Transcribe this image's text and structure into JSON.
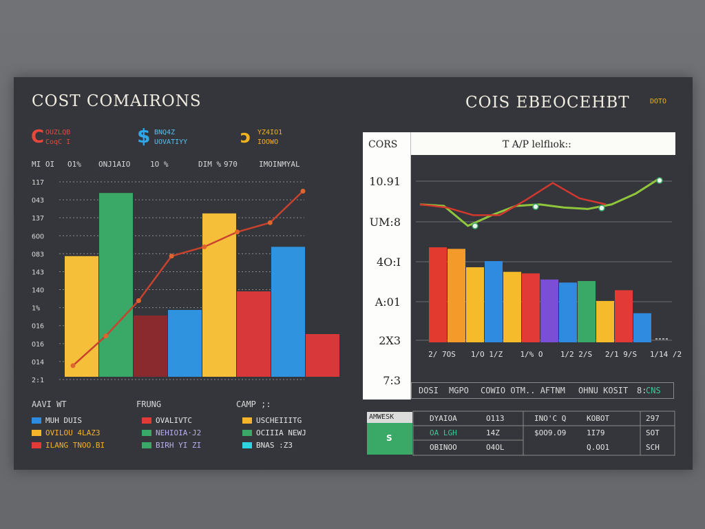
{
  "left_panel": {
    "title": "COST COMAIRONS",
    "kpis": [
      {
        "icon": "cost-icon",
        "color": "#e8473c",
        "line1": "OUZLQB",
        "line2": "CoqC I",
        "label_color": "#e8473c"
      },
      {
        "icon": "dollar-icon",
        "color": "#2fa8e8",
        "line1": "BNQ4Z",
        "line2": "UOVATIYY",
        "label_color": "#56c0f0"
      },
      {
        "icon": "gauge-icon",
        "color": "#f3b21e",
        "line1": "YZ4IO1",
        "line2": "IOOWO",
        "label_color": "#f3b21e"
      }
    ],
    "header_row": [
      "MI OI",
      "O1%",
      "ONJ1AIO",
      "1O %",
      "DIM %",
      "970",
      "IMOINMYAL"
    ],
    "legend_title_1": "AAVI WT",
    "legend_title_2": "FRUNG",
    "legend_title_3": "CAMP ;:",
    "legend": [
      {
        "color": "#2f8be0",
        "label": "MUH DUIS",
        "label_color": "#e6e6e6"
      },
      {
        "color": "#f5b52a",
        "label": "OVILOU 4LAZ3",
        "label_color": "#f5b52a"
      },
      {
        "color": "#e23a36",
        "label": "ILANG TNOO.BI",
        "label_color": "#f3b21e"
      },
      {
        "color": "#e23a36",
        "label": "OVALIVTC",
        "label_color": "#e6e6e6"
      },
      {
        "color": "#3aa866",
        "label": "NEHIOIA·J2",
        "label_color": "#b8b0f0"
      },
      {
        "color": "#3aa866",
        "label": "BIRH YI ZI",
        "label_color": "#b8b0f0"
      },
      {
        "color": "#f5b52a",
        "label": "USCHEIIITG",
        "label_color": "#e6e6e6"
      },
      {
        "color": "#3aa866",
        "label": "OCIIIA NEWJ",
        "label_color": "#e6e6e6"
      },
      {
        "color": "#2fd4e0",
        "label": "BNAS :Z3",
        "label_color": "#e6e6e6"
      }
    ]
  },
  "right_panel": {
    "title": "COIS EBEOCEHBT",
    "badge": "DOTO",
    "axis_label": "CORS",
    "header": "T A/P lelflıok::",
    "summary": {
      "c1": "DOSI",
      "c2": "MGPO",
      "c3": "COWIO OTM.. AFTNM",
      "c4": "OHNU KOSIT",
      "c5": "8:",
      "c6": "CNS"
    },
    "table": {
      "label": "AMWESK",
      "value": "S",
      "rows": [
        [
          "DYAIOA",
          "O113",
          "INO'C Q",
          "KOBOT",
          "297"
        ],
        [
          "OA LGH",
          "14Z",
          "$OO9.O9",
          "1I79",
          "SOT"
        ],
        [
          "OBINOO",
          "O4OL",
          "",
          "Q.OO1",
          "SCH"
        ]
      ]
    }
  },
  "chart_data": [
    {
      "type": "bar",
      "title": "COST COMAIRONS",
      "y_tick_labels": [
        "117",
        "O43",
        "137",
        "6OO",
        "O83",
        "143",
        "14O",
        "1%",
        "O16",
        "O16",
        "O14",
        "2:1"
      ],
      "bars": [
        {
          "color": "#f5bf3a",
          "value": 6.5
        },
        {
          "color": "#3aa866",
          "value": 9.9
        },
        {
          "color": "#8a2a2e",
          "value": 3.3
        },
        {
          "color": "#2f93e0",
          "value": 3.6
        },
        {
          "color": "#f5bf3a",
          "value": 8.8
        },
        {
          "color": "#d8383a",
          "value": 4.6
        },
        {
          "color": "#2f93e0",
          "value": 7.0
        },
        {
          "color": "#d8383a",
          "value": 2.3
        }
      ],
      "series": [
        {
          "type": "line",
          "color": "#c8422e",
          "values": [
            0.6,
            2.2,
            4.1,
            6.5,
            7.0,
            7.8,
            8.3,
            10.0
          ]
        }
      ],
      "ylim": [
        0,
        10.5
      ]
    },
    {
      "type": "bar",
      "title": "COIS EBEOCEHBT",
      "y_tick_labels": [
        "10.91",
        "UM:8",
        "4O:I",
        "A:01",
        "2X3",
        "7:3"
      ],
      "x_tick_labels": [
        "2/ 7OS",
        "1/O 1/Z",
        "1/% O",
        "1/2 2/S",
        "2/1 9/S",
        "1/14 /2"
      ],
      "bars": [
        {
          "color": "#e23a2e",
          "value": 6.2
        },
        {
          "color": "#f39a2a",
          "value": 6.1
        },
        {
          "color": "#f5bb2a",
          "value": 4.9
        },
        {
          "color": "#2f8be0",
          "value": 5.3
        },
        {
          "color": "#f5bb2a",
          "value": 4.6
        },
        {
          "color": "#e23a36",
          "value": 4.5
        },
        {
          "color": "#7a4fd6",
          "value": 4.1
        },
        {
          "color": "#2f8be0",
          "value": 3.9
        },
        {
          "color": "#3aa866",
          "value": 4.0
        },
        {
          "color": "#f5bb2a",
          "value": 2.7
        },
        {
          "color": "#e23a36",
          "value": 3.4
        },
        {
          "color": "#2f8be0",
          "value": 1.9
        }
      ],
      "series": [
        {
          "type": "line",
          "color": "#8fc63c",
          "values": [
            9.0,
            8.9,
            7.6,
            8.3,
            8.9,
            9.0,
            8.8,
            8.7,
            9.0,
            9.7,
            10.7
          ]
        },
        {
          "type": "line",
          "color": "#d2382e",
          "values": [
            9.0,
            8.8,
            8.3,
            8.3,
            9.3,
            10.4,
            9.4,
            9.0
          ]
        }
      ],
      "ylim": [
        0,
        12
      ]
    }
  ]
}
